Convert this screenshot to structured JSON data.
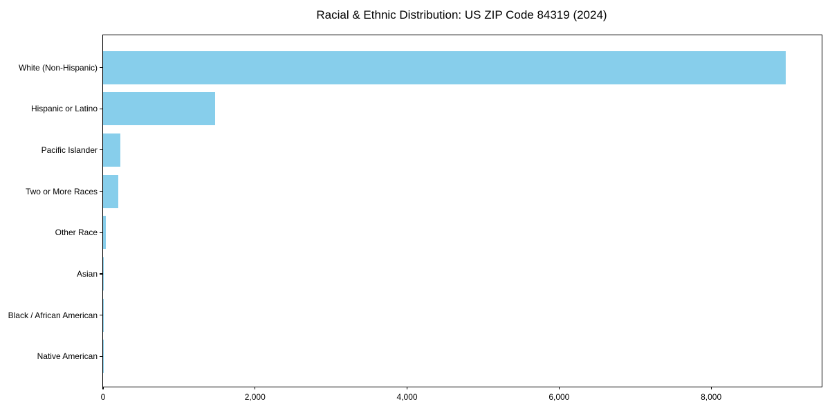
{
  "chart_data": {
    "type": "bar",
    "orientation": "horizontal",
    "title": "Racial & Ethnic Distribution: US ZIP Code 84319 (2024)",
    "categories": [
      "White (Non-Hispanic)",
      "Hispanic or Latino",
      "Pacific Islander",
      "Two or More Races",
      "Other Race",
      "Asian",
      "Black / African American",
      "Native American"
    ],
    "values": [
      8980,
      1474,
      228,
      196,
      36,
      12,
      3,
      1
    ],
    "xlabel": "",
    "ylabel": "",
    "xlim": [
      0,
      9455
    ],
    "xticks": [
      {
        "value": 0,
        "label": "0"
      },
      {
        "value": 2000,
        "label": "2,000"
      },
      {
        "value": 4000,
        "label": "4,000"
      },
      {
        "value": 6000,
        "label": "6,000"
      },
      {
        "value": 8000,
        "label": "8,000"
      }
    ],
    "grid": false,
    "legend": "none",
    "bar_color": "#87CEEB",
    "axis_color": "#000000",
    "text_color": "#000000",
    "background_color": "#FFFFFF"
  }
}
